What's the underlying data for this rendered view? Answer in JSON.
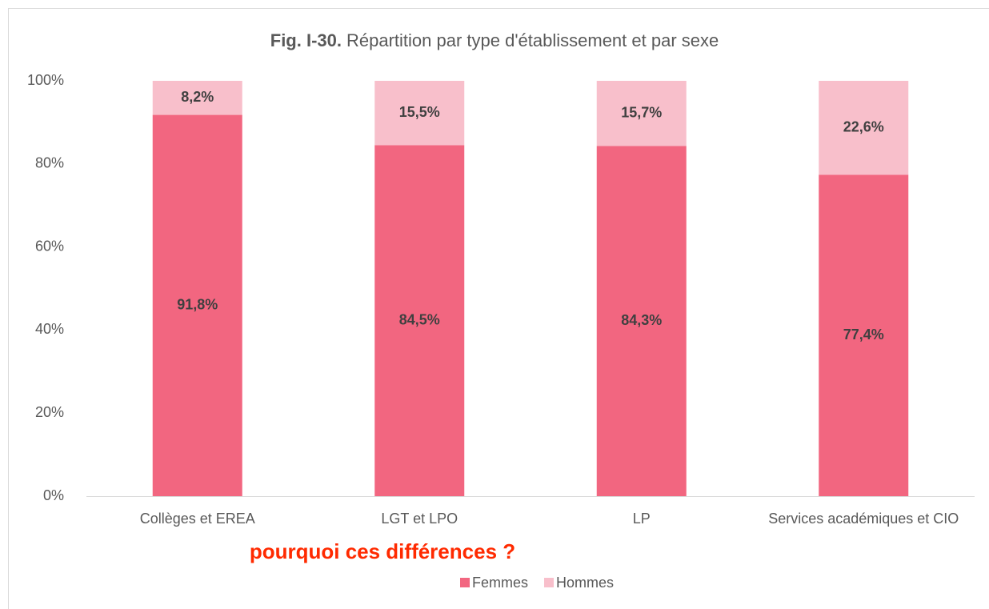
{
  "chart_data": {
    "type": "stacked_bar",
    "title": "Fig. I-30.",
    "subtitle": "Répartition par type d'établissement et par sexe",
    "annotation": "pourquoi ces différences ?",
    "categories": [
      "Collèges et EREA",
      "LGT et LPO",
      "LP",
      "Services académiques et CIO"
    ],
    "series": [
      {
        "name": "Femmes",
        "color": "#f26680",
        "values": [
          91.8,
          84.5,
          84.3,
          77.4
        ],
        "value_labels": [
          "91,8%",
          "84,5%",
          "84,3%",
          "77,4%"
        ]
      },
      {
        "name": "Hommes",
        "color": "#f8bfcb",
        "values": [
          8.2,
          15.5,
          15.7,
          22.6
        ],
        "value_labels": [
          "8,2%",
          "15,5%",
          "15,7%",
          "22,6%"
        ]
      }
    ],
    "ylim": [
      0,
      100
    ],
    "yticks": [
      {
        "value": 0,
        "label": "0%"
      },
      {
        "value": 20,
        "label": "20%"
      },
      {
        "value": 40,
        "label": "40%"
      },
      {
        "value": 60,
        "label": "60%"
      },
      {
        "value": 80,
        "label": "80%"
      },
      {
        "value": 100,
        "label": "100%"
      }
    ],
    "grid": false,
    "legend": "bottom"
  }
}
